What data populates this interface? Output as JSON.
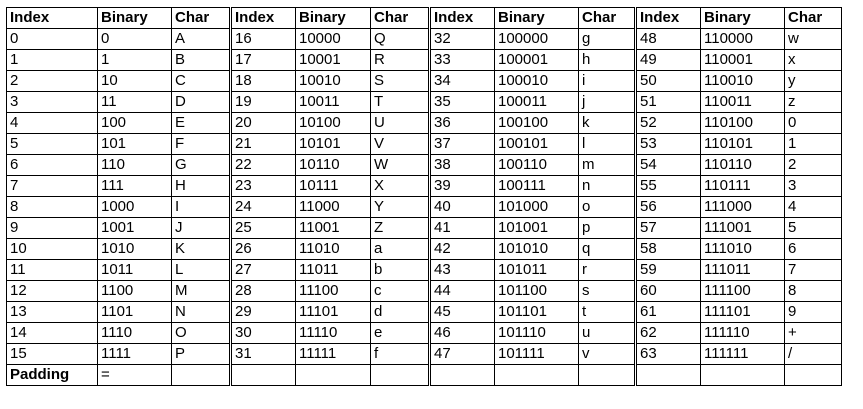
{
  "headers": [
    "Index",
    "Binary",
    "Char"
  ],
  "groups": [
    [
      [
        "0",
        "0",
        "A"
      ],
      [
        "1",
        "1",
        "B"
      ],
      [
        "2",
        "10",
        "C"
      ],
      [
        "3",
        "11",
        "D"
      ],
      [
        "4",
        "100",
        "E"
      ],
      [
        "5",
        "101",
        "F"
      ],
      [
        "6",
        "110",
        "G"
      ],
      [
        "7",
        "111",
        "H"
      ],
      [
        "8",
        "1000",
        "I"
      ],
      [
        "9",
        "1001",
        "J"
      ],
      [
        "10",
        "1010",
        "K"
      ],
      [
        "11",
        "1011",
        "L"
      ],
      [
        "12",
        "1100",
        "M"
      ],
      [
        "13",
        "1101",
        "N"
      ],
      [
        "14",
        "1110",
        "O"
      ],
      [
        "15",
        "1111",
        "P"
      ]
    ],
    [
      [
        "16",
        "10000",
        "Q"
      ],
      [
        "17",
        "10001",
        "R"
      ],
      [
        "18",
        "10010",
        "S"
      ],
      [
        "19",
        "10011",
        "T"
      ],
      [
        "20",
        "10100",
        "U"
      ],
      [
        "21",
        "10101",
        "V"
      ],
      [
        "22",
        "10110",
        "W"
      ],
      [
        "23",
        "10111",
        "X"
      ],
      [
        "24",
        "11000",
        "Y"
      ],
      [
        "25",
        "11001",
        "Z"
      ],
      [
        "26",
        "11010",
        "a"
      ],
      [
        "27",
        "11011",
        "b"
      ],
      [
        "28",
        "11100",
        "c"
      ],
      [
        "29",
        "11101",
        "d"
      ],
      [
        "30",
        "11110",
        "e"
      ],
      [
        "31",
        "11111",
        "f"
      ]
    ],
    [
      [
        "32",
        "100000",
        "g"
      ],
      [
        "33",
        "100001",
        "h"
      ],
      [
        "34",
        "100010",
        "i"
      ],
      [
        "35",
        "100011",
        "j"
      ],
      [
        "36",
        "100100",
        "k"
      ],
      [
        "37",
        "100101",
        "l"
      ],
      [
        "38",
        "100110",
        "m"
      ],
      [
        "39",
        "100111",
        "n"
      ],
      [
        "40",
        "101000",
        "o"
      ],
      [
        "41",
        "101001",
        "p"
      ],
      [
        "42",
        "101010",
        "q"
      ],
      [
        "43",
        "101011",
        "r"
      ],
      [
        "44",
        "101100",
        "s"
      ],
      [
        "45",
        "101101",
        "t"
      ],
      [
        "46",
        "101110",
        "u"
      ],
      [
        "47",
        "101111",
        "v"
      ]
    ],
    [
      [
        "48",
        "110000",
        "w"
      ],
      [
        "49",
        "110001",
        "x"
      ],
      [
        "50",
        "110010",
        "y"
      ],
      [
        "51",
        "110011",
        "z"
      ],
      [
        "52",
        "110100",
        "0"
      ],
      [
        "53",
        "110101",
        "1"
      ],
      [
        "54",
        "110110",
        "2"
      ],
      [
        "55",
        "110111",
        "3"
      ],
      [
        "56",
        "111000",
        "4"
      ],
      [
        "57",
        "111001",
        "5"
      ],
      [
        "58",
        "111010",
        "6"
      ],
      [
        "59",
        "111011",
        "7"
      ],
      [
        "60",
        "111100",
        "8"
      ],
      [
        "61",
        "111101",
        "9"
      ],
      [
        "62",
        "111110",
        "+"
      ],
      [
        "63",
        "111111",
        "/"
      ]
    ]
  ],
  "padding": {
    "label": "Padding",
    "char": "="
  }
}
